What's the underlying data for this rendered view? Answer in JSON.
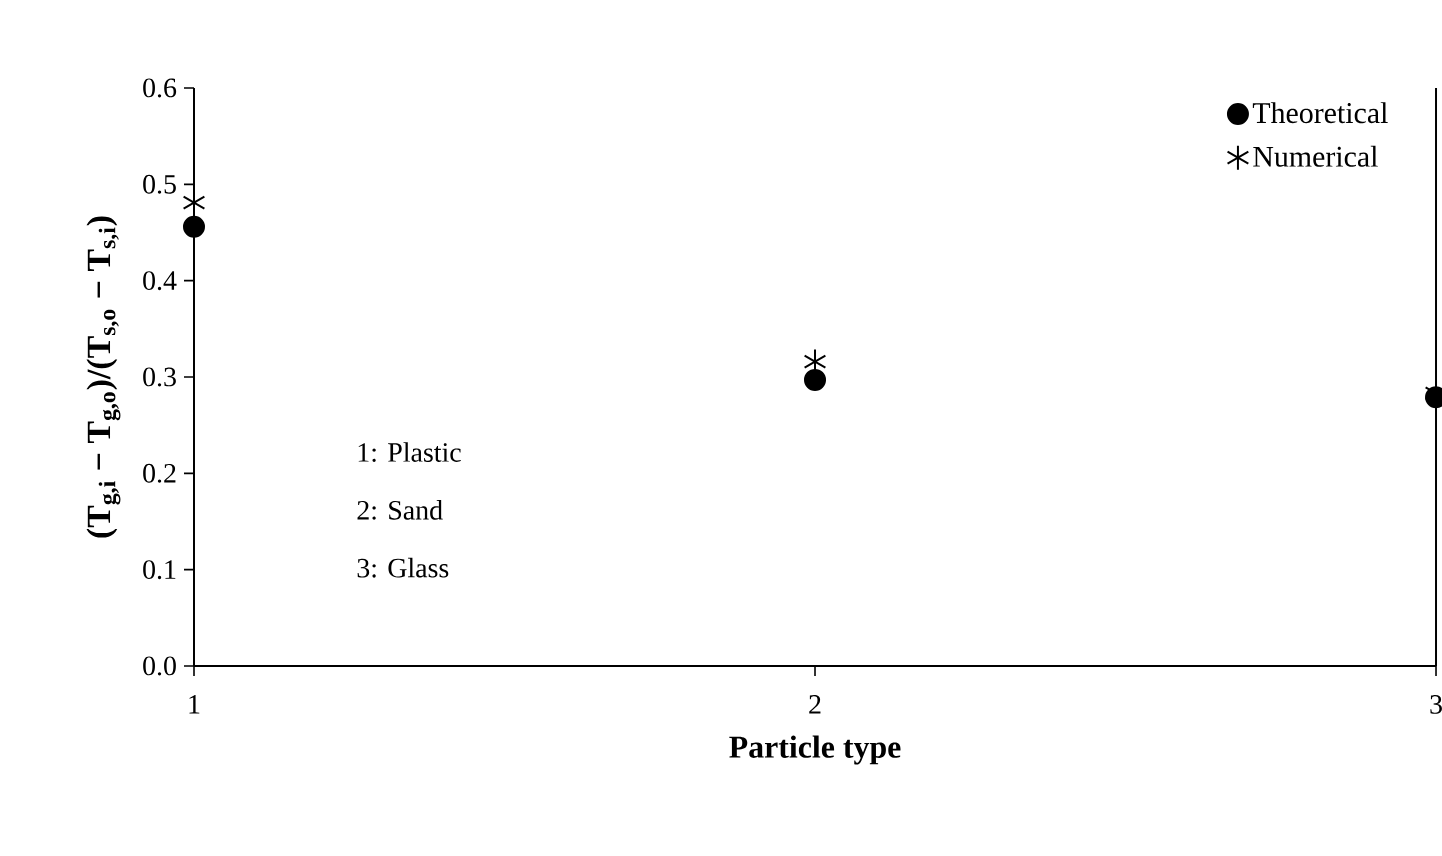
{
  "chart_data": {
    "type": "scatter",
    "xlabel": "Particle type",
    "ylabel": "(T$_{g,i}$ − T$_{g,o}$)/(T$_{s,o}$ − T$_{s,i}$)",
    "xlim": [
      1,
      3
    ],
    "xticks": [
      1,
      2,
      3
    ],
    "ylim": [
      0,
      0.6
    ],
    "yticks": [
      {
        "value": 0,
        "label": "0.0"
      },
      {
        "value": 0.1,
        "label": "0.1"
      },
      {
        "value": 0.2,
        "label": "0.2"
      },
      {
        "value": 0.3,
        "label": "0.3"
      },
      {
        "value": 0.4,
        "label": "0.4"
      },
      {
        "value": 0.5,
        "label": "0.5"
      },
      {
        "value": 0.6,
        "label": "0.6"
      }
    ],
    "series": [
      {
        "name": "Theoretical",
        "color": "#000000",
        "marker": "circle",
        "x": [
          1,
          2,
          3
        ],
        "values": [
          0.456,
          0.297,
          0.279
        ]
      },
      {
        "name": "Numerical",
        "color": "#000000",
        "marker": "cross",
        "x": [
          1,
          2,
          3
        ],
        "values": [
          0.481,
          0.316,
          0.283
        ]
      }
    ],
    "legend": "top right",
    "grid": false,
    "annotations": [
      "1: Plastic",
      "2: Sand",
      "3: Glass"
    ]
  }
}
